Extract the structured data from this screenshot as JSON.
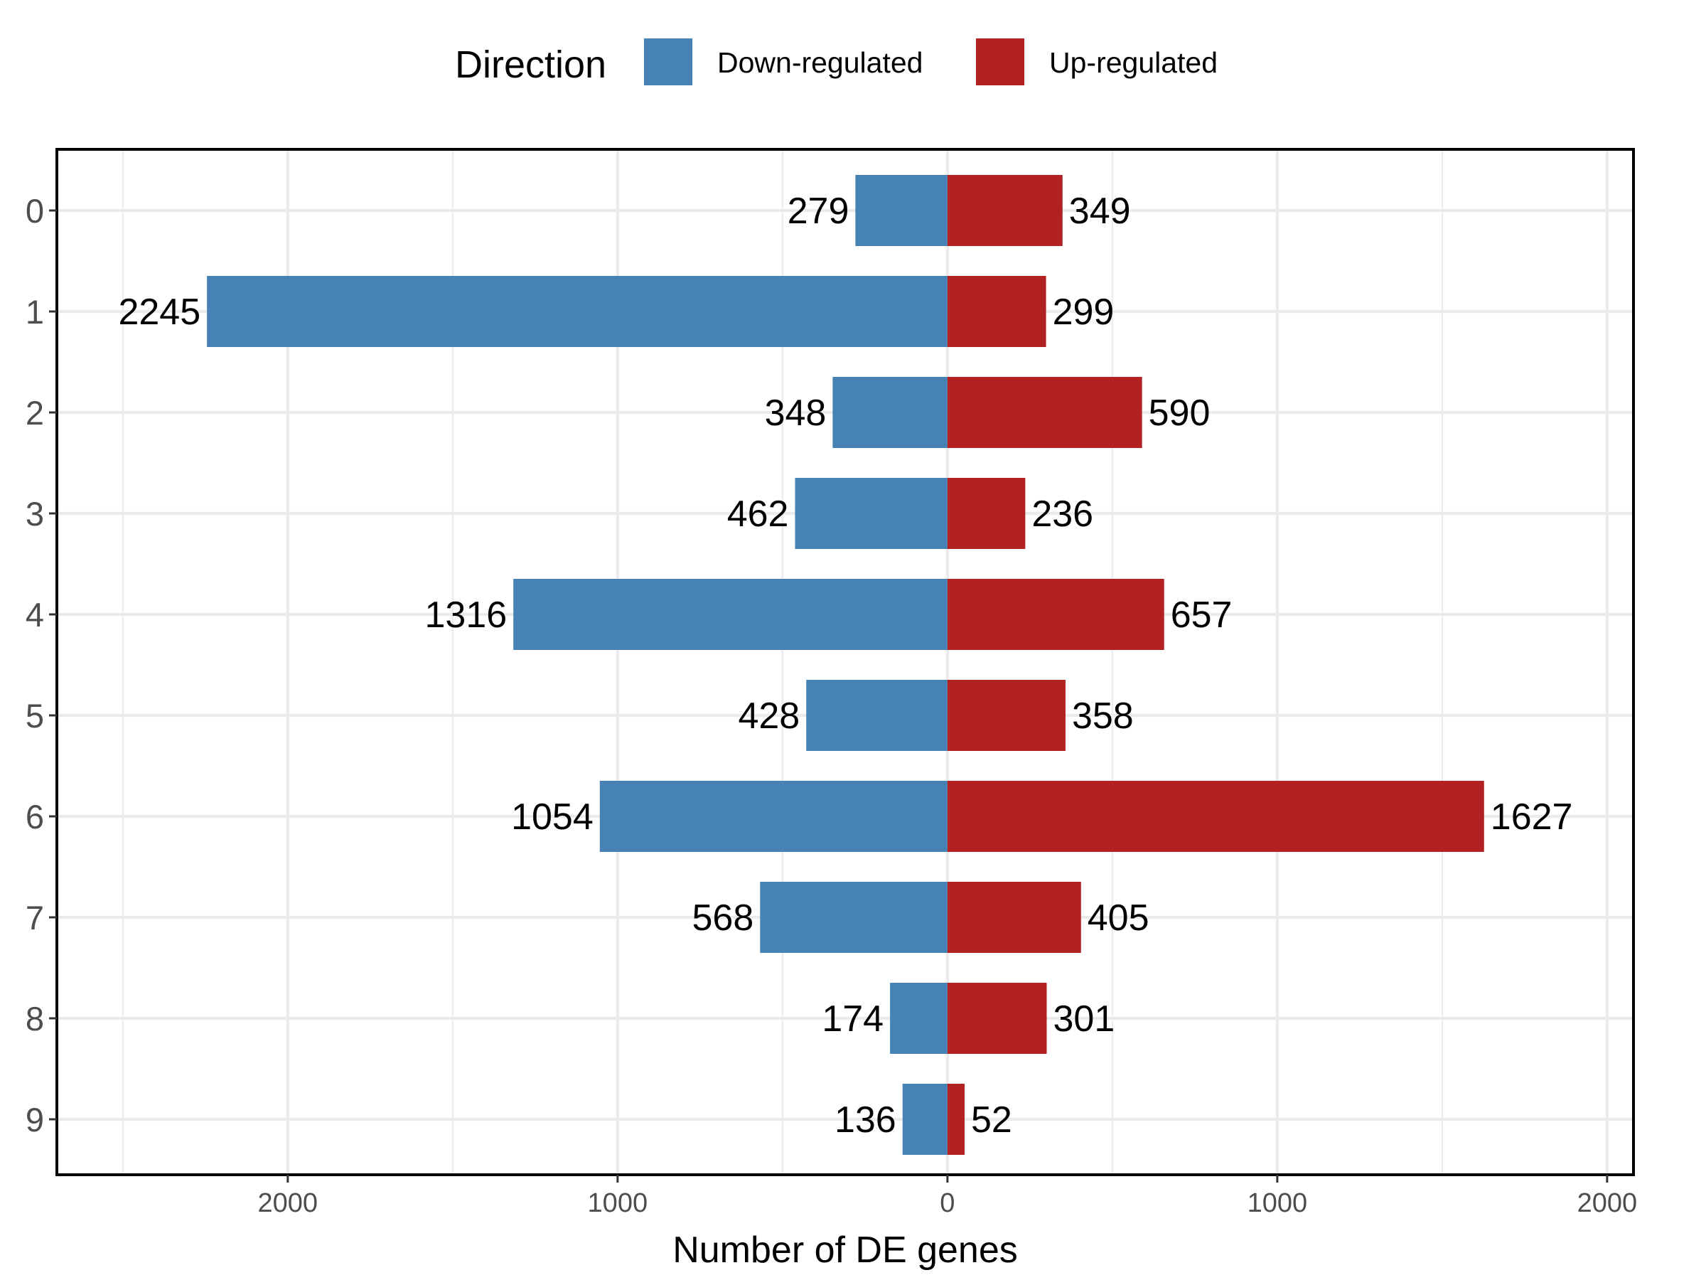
{
  "chart_data": {
    "type": "bar",
    "orientation": "horizontal",
    "layout": "diverging",
    "categories": [
      "0",
      "1",
      "2",
      "3",
      "4",
      "5",
      "6",
      "7",
      "8",
      "9"
    ],
    "series": [
      {
        "name": "Down-regulated",
        "color": "#4682B4",
        "side": "left",
        "values": [
          279,
          2245,
          348,
          462,
          1316,
          428,
          1054,
          568,
          174,
          136
        ]
      },
      {
        "name": "Up-regulated",
        "color": "#B22222",
        "side": "right",
        "values": [
          349,
          299,
          590,
          236,
          657,
          358,
          1627,
          405,
          301,
          52
        ]
      }
    ],
    "xlabel": "Number of DE genes",
    "ylabel": "",
    "xlim": [
      -2700,
      2080
    ],
    "x_ticks": [
      {
        "value": -2000,
        "label": "2000"
      },
      {
        "value": -1000,
        "label": "1000"
      },
      {
        "value": 0,
        "label": "0"
      },
      {
        "value": 1000,
        "label": "1000"
      },
      {
        "value": 2000,
        "label": "2000"
      }
    ],
    "x_minor_ticks": [
      -2500,
      -1500,
      -500,
      500,
      1500
    ],
    "grid": true,
    "legend": {
      "title": "Direction",
      "position": "top"
    }
  }
}
